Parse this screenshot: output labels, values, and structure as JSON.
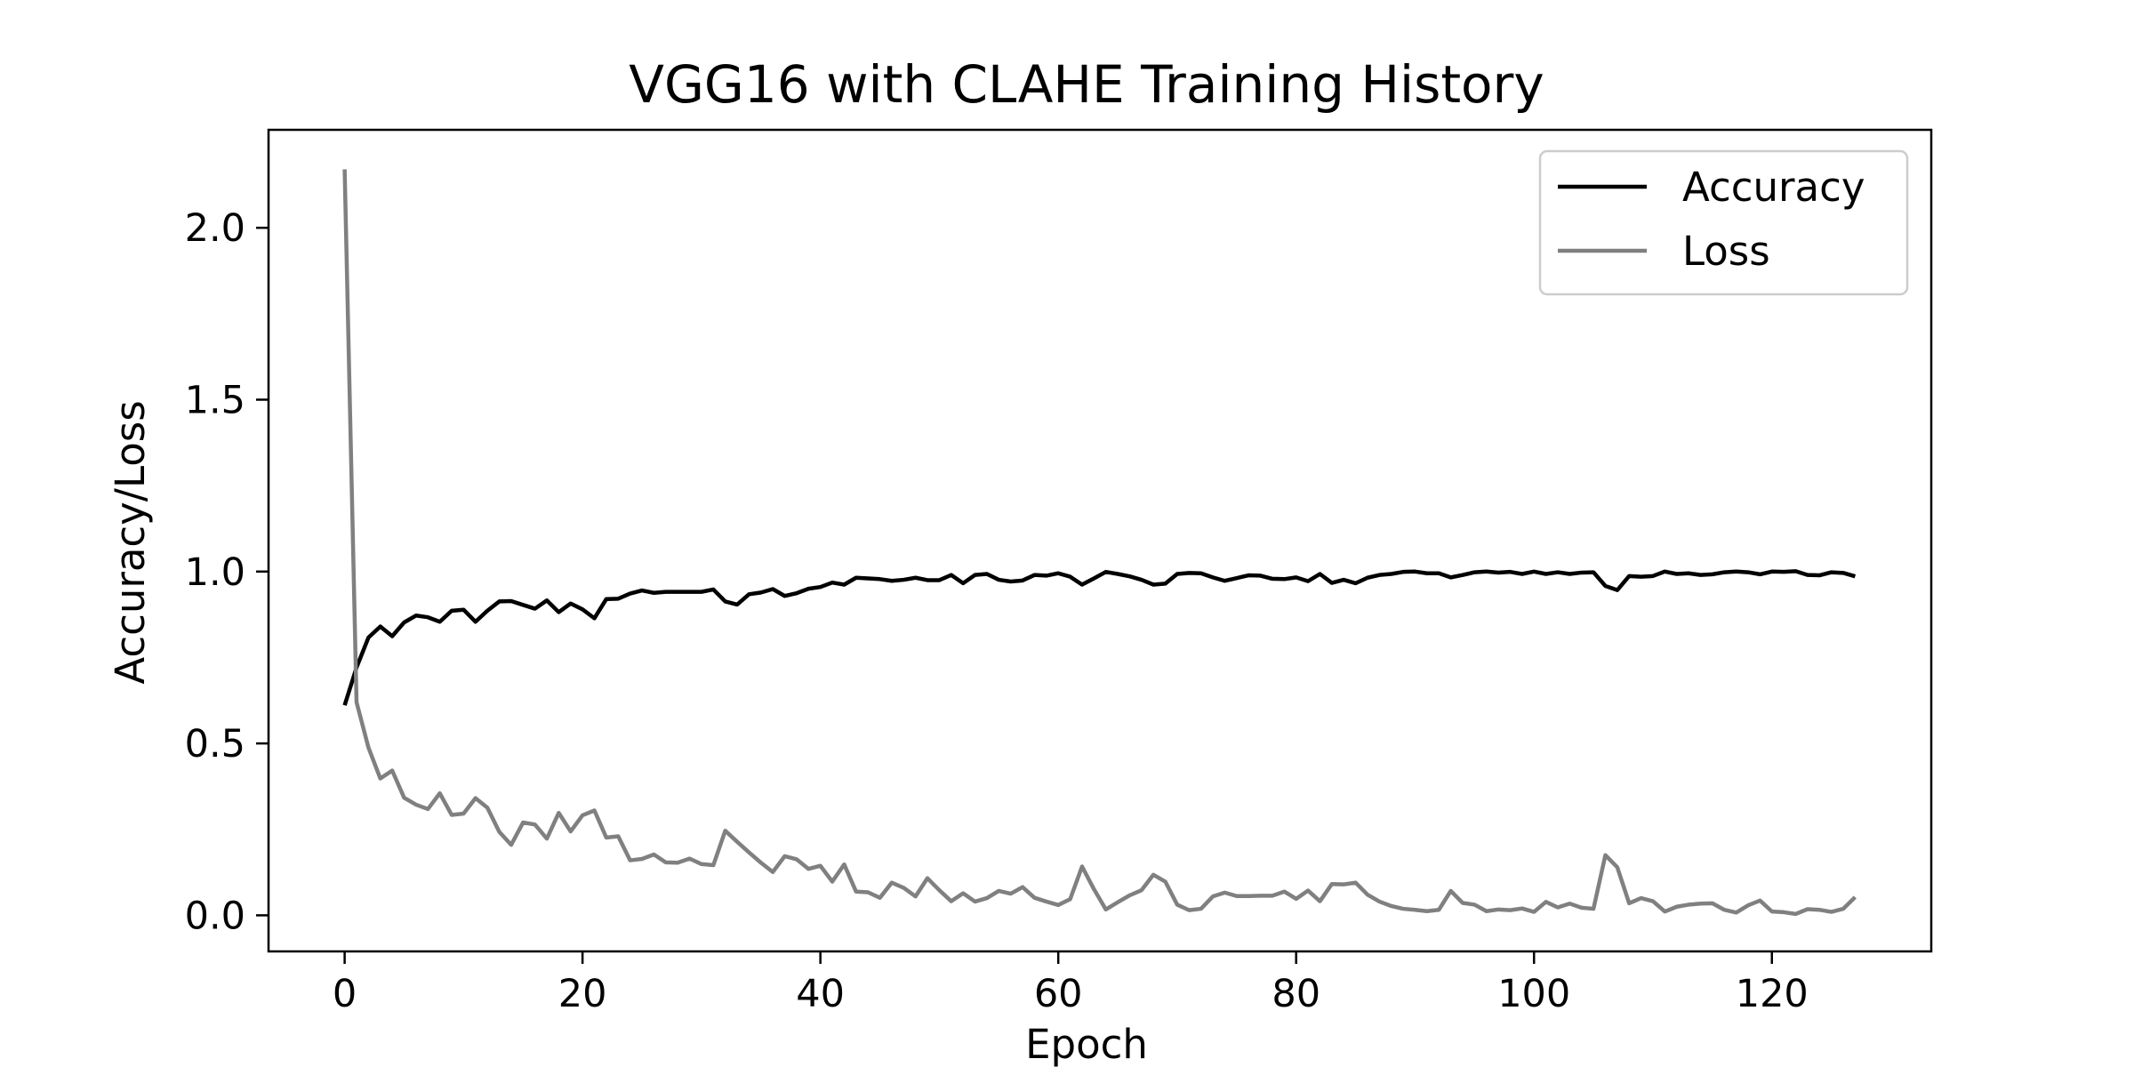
{
  "chart_data": {
    "type": "line",
    "title": "VGG16 with CLAHE Training History",
    "xlabel": "Epoch",
    "ylabel": "Accuracy/Loss",
    "xlim": [
      -6.4,
      133.4
    ],
    "ylim": [
      -0.105,
      2.285
    ],
    "xticks": [
      0,
      20,
      40,
      60,
      80,
      100,
      120
    ],
    "yticks": [
      0.0,
      0.5,
      1.0,
      1.5,
      2.0
    ],
    "xtick_labels": [
      "0",
      "20",
      "40",
      "60",
      "80",
      "100",
      "120"
    ],
    "ytick_labels": [
      "0.0",
      "0.5",
      "1.0",
      "1.5",
      "2.0"
    ],
    "grid": false,
    "legend_position": "top-right",
    "series": [
      {
        "name": "Accuracy",
        "color": "#000000",
        "values": [
          0.611,
          0.721,
          0.808,
          0.84,
          0.812,
          0.852,
          0.872,
          0.867,
          0.854,
          0.886,
          0.889,
          0.854,
          0.886,
          0.913,
          0.914,
          0.903,
          0.892,
          0.916,
          0.882,
          0.907,
          0.89,
          0.864,
          0.92,
          0.921,
          0.936,
          0.945,
          0.938,
          0.941,
          0.941,
          0.941,
          0.941,
          0.948,
          0.913,
          0.904,
          0.934,
          0.939,
          0.949,
          0.929,
          0.937,
          0.95,
          0.955,
          0.968,
          0.962,
          0.982,
          0.98,
          0.978,
          0.973,
          0.976,
          0.982,
          0.975,
          0.975,
          0.99,
          0.966,
          0.99,
          0.993,
          0.976,
          0.971,
          0.974,
          0.99,
          0.988,
          0.995,
          0.985,
          0.962,
          0.98,
          0.999,
          0.993,
          0.986,
          0.976,
          0.962,
          0.965,
          0.993,
          0.996,
          0.995,
          0.983,
          0.973,
          0.981,
          0.989,
          0.988,
          0.979,
          0.978,
          0.983,
          0.972,
          0.993,
          0.967,
          0.976,
          0.966,
          0.982,
          0.99,
          0.993,
          0.999,
          1.0,
          0.995,
          0.995,
          0.983,
          0.99,
          0.998,
          1.0,
          0.997,
          0.999,
          0.993,
          1.0,
          0.993,
          0.998,
          0.993,
          0.997,
          0.998,
          0.958,
          0.946,
          0.987,
          0.985,
          0.987,
          1.0,
          0.993,
          0.995,
          0.99,
          0.992,
          0.998,
          1.0,
          0.998,
          0.992,
          1.0,
          0.999,
          1.001,
          0.99,
          0.989,
          0.998,
          0.996,
          0.986
        ]
      },
      {
        "name": "Loss",
        "color": "#808080",
        "values": [
          2.17,
          0.62,
          0.488,
          0.398,
          0.421,
          0.342,
          0.322,
          0.309,
          0.355,
          0.292,
          0.296,
          0.341,
          0.313,
          0.243,
          0.205,
          0.27,
          0.264,
          0.223,
          0.298,
          0.244,
          0.291,
          0.305,
          0.226,
          0.23,
          0.16,
          0.164,
          0.177,
          0.154,
          0.153,
          0.165,
          0.149,
          0.146,
          0.246,
          0.214,
          0.183,
          0.153,
          0.126,
          0.172,
          0.163,
          0.135,
          0.144,
          0.098,
          0.148,
          0.069,
          0.067,
          0.051,
          0.095,
          0.08,
          0.055,
          0.108,
          0.073,
          0.041,
          0.064,
          0.04,
          0.05,
          0.071,
          0.063,
          0.082,
          0.051,
          0.04,
          0.03,
          0.047,
          0.142,
          0.076,
          0.017,
          0.038,
          0.058,
          0.073,
          0.118,
          0.098,
          0.031,
          0.015,
          0.019,
          0.055,
          0.066,
          0.056,
          0.056,
          0.057,
          0.057,
          0.069,
          0.048,
          0.072,
          0.041,
          0.091,
          0.09,
          0.095,
          0.06,
          0.04,
          0.027,
          0.019,
          0.016,
          0.012,
          0.016,
          0.071,
          0.036,
          0.031,
          0.012,
          0.017,
          0.015,
          0.02,
          0.01,
          0.039,
          0.023,
          0.034,
          0.022,
          0.019,
          0.175,
          0.14,
          0.035,
          0.05,
          0.041,
          0.011,
          0.025,
          0.031,
          0.034,
          0.035,
          0.016,
          0.008,
          0.029,
          0.043,
          0.011,
          0.009,
          0.004,
          0.018,
          0.016,
          0.01,
          0.019,
          0.053
        ]
      }
    ]
  }
}
